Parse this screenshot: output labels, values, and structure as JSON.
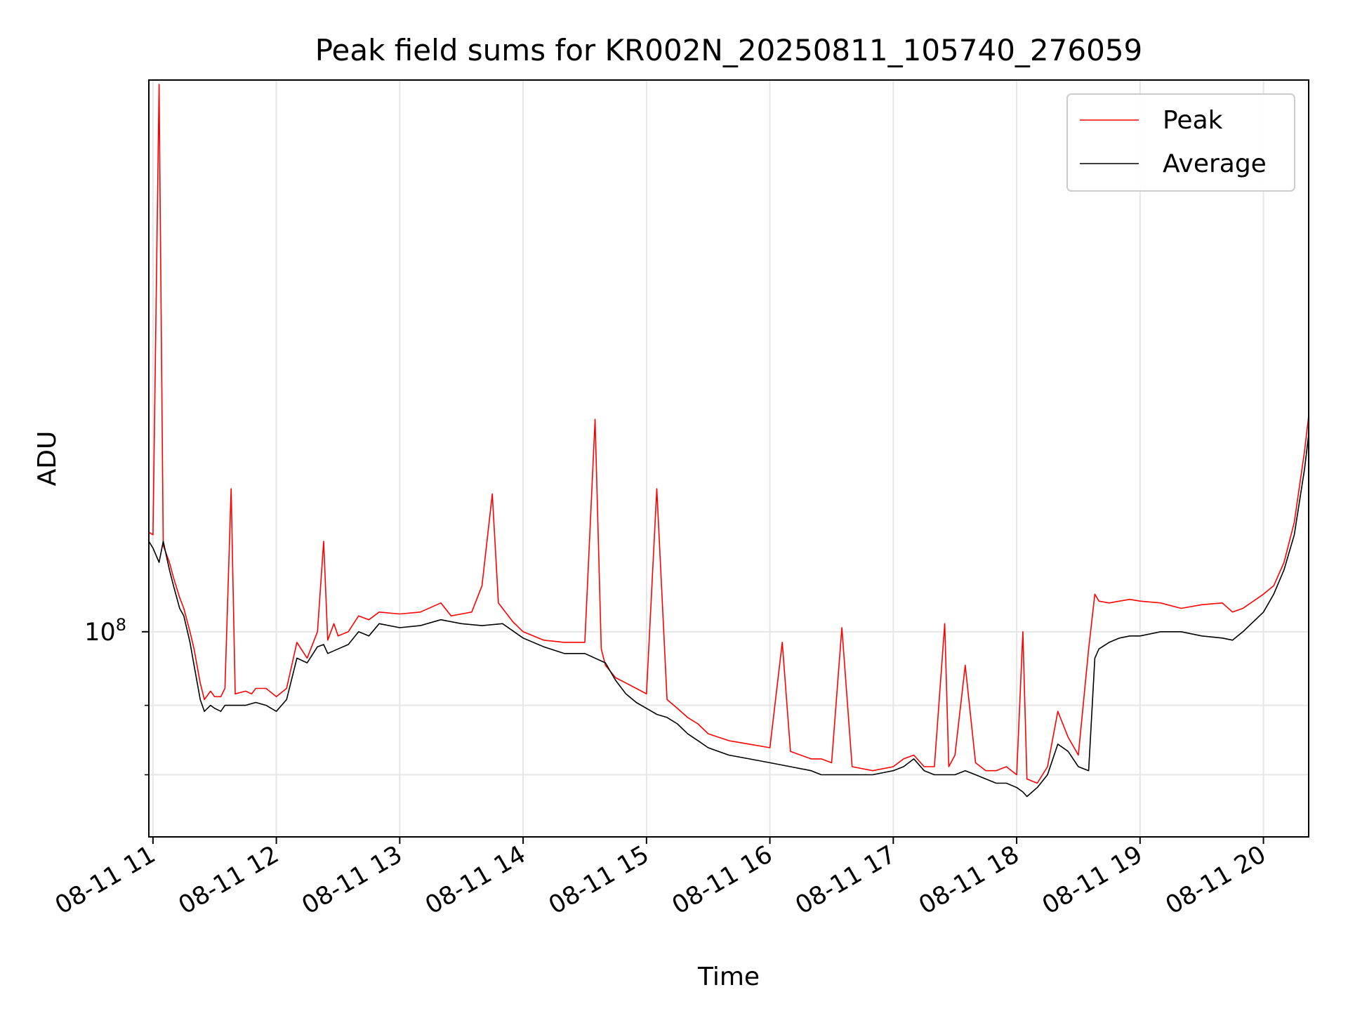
{
  "chart_data": {
    "type": "line",
    "title": "Peak field sums for KR002N_20250811_105740_276059",
    "xlabel": "Time",
    "ylabel": "ADU",
    "yscale": "log",
    "grid": true,
    "legend_position": "top-right",
    "xlim": [
      "2025-08-11 10:58",
      "2025-08-11 20:22"
    ],
    "ylim": [
      37000000,
      1450000000
    ],
    "x_ticks": [
      "08-11 11",
      "08-11 12",
      "08-11 13",
      "08-11 14",
      "08-11 15",
      "08-11 16",
      "08-11 17",
      "08-11 18",
      "08-11 19",
      "08-11 20"
    ],
    "y_tick_labels": [
      {
        "base": "10",
        "exp": "8"
      }
    ],
    "y_minor_ticks": [
      50000000,
      70000000
    ],
    "x_unit": "time of day (hours)",
    "series": [
      {
        "name": "Peak",
        "color": "#ff0000",
        "x": [
          "10:58",
          "11:00",
          "11:03",
          "11:05",
          "11:08",
          "11:10",
          "11:13",
          "11:15",
          "11:18",
          "11:20",
          "11:23",
          "11:25",
          "11:28",
          "11:30",
          "11:33",
          "11:35",
          "11:38",
          "11:40",
          "11:45",
          "11:48",
          "11:50",
          "11:55",
          "12:00",
          "12:05",
          "12:10",
          "12:15",
          "12:20",
          "12:23",
          "12:25",
          "12:28",
          "12:30",
          "12:35",
          "12:40",
          "12:45",
          "12:50",
          "13:00",
          "13:10",
          "13:20",
          "13:25",
          "13:30",
          "13:35",
          "13:40",
          "13:45",
          "13:48",
          "13:50",
          "13:55",
          "14:00",
          "14:10",
          "14:20",
          "14:30",
          "14:35",
          "14:38",
          "14:40",
          "14:45",
          "14:50",
          "14:55",
          "15:00",
          "15:05",
          "15:10",
          "15:15",
          "15:20",
          "15:25",
          "15:30",
          "15:40",
          "15:50",
          "16:00",
          "16:06",
          "16:10",
          "16:20",
          "16:25",
          "16:30",
          "16:35",
          "16:40",
          "16:50",
          "17:00",
          "17:05",
          "17:10",
          "17:15",
          "17:20",
          "17:25",
          "17:27",
          "17:30",
          "17:35",
          "17:40",
          "17:45",
          "17:50",
          "17:55",
          "18:00",
          "18:03",
          "18:05",
          "18:10",
          "18:15",
          "18:20",
          "18:25",
          "18:30",
          "18:35",
          "18:38",
          "18:40",
          "18:45",
          "18:50",
          "18:55",
          "19:00",
          "19:10",
          "19:20",
          "19:30",
          "19:40",
          "19:45",
          "19:50",
          "20:00",
          "20:05",
          "20:10",
          "20:15",
          "20:20",
          "20:22"
        ],
        "values": [
          162000000,
          160000000,
          1420000000,
          152000000,
          140000000,
          130000000,
          118000000,
          112000000,
          100000000,
          92000000,
          78000000,
          72000000,
          75000000,
          73000000,
          73000000,
          76000000,
          200000000,
          74000000,
          75000000,
          74000000,
          76000000,
          76000000,
          73000000,
          76000000,
          95000000,
          88000000,
          100000000,
          155000000,
          96000000,
          104000000,
          98000000,
          100000000,
          108000000,
          106000000,
          110000000,
          109000000,
          110000000,
          115000000,
          108000000,
          109000000,
          110000000,
          125000000,
          195000000,
          115000000,
          112000000,
          105000000,
          100000000,
          96000000,
          95000000,
          95000000,
          280000000,
          92000000,
          85000000,
          80000000,
          78000000,
          76000000,
          74000000,
          200000000,
          72000000,
          69000000,
          66000000,
          64000000,
          61000000,
          59000000,
          58000000,
          57000000,
          95000000,
          56000000,
          54000000,
          54000000,
          53000000,
          102000000,
          52000000,
          51000000,
          52000000,
          54000000,
          55000000,
          52000000,
          52000000,
          104000000,
          52000000,
          55000000,
          85000000,
          53000000,
          51000000,
          51000000,
          52000000,
          50000000,
          100000000,
          49000000,
          48000000,
          52000000,
          68000000,
          60000000,
          55000000,
          92000000,
          120000000,
          116000000,
          115000000,
          116000000,
          117000000,
          116000000,
          115000000,
          112000000,
          114000000,
          115000000,
          110000000,
          112000000,
          120000000,
          125000000,
          140000000,
          170000000,
          240000000,
          285000000
        ]
      },
      {
        "name": "Average",
        "color": "#000000",
        "x": [
          "10:58",
          "11:00",
          "11:03",
          "11:05",
          "11:08",
          "11:10",
          "11:13",
          "11:15",
          "11:18",
          "11:20",
          "11:23",
          "11:25",
          "11:28",
          "11:30",
          "11:33",
          "11:35",
          "11:40",
          "11:45",
          "11:50",
          "11:55",
          "12:00",
          "12:05",
          "12:10",
          "12:15",
          "12:20",
          "12:23",
          "12:25",
          "12:30",
          "12:35",
          "12:40",
          "12:45",
          "12:50",
          "13:00",
          "13:10",
          "13:20",
          "13:30",
          "13:40",
          "13:50",
          "14:00",
          "14:10",
          "14:20",
          "14:30",
          "14:40",
          "14:45",
          "14:50",
          "14:55",
          "15:00",
          "15:05",
          "15:10",
          "15:15",
          "15:20",
          "15:25",
          "15:30",
          "15:40",
          "15:50",
          "16:00",
          "16:10",
          "16:20",
          "16:25",
          "16:30",
          "16:40",
          "16:50",
          "17:00",
          "17:05",
          "17:10",
          "17:15",
          "17:20",
          "17:25",
          "17:30",
          "17:35",
          "17:40",
          "17:45",
          "17:50",
          "17:55",
          "18:00",
          "18:03",
          "18:05",
          "18:10",
          "18:15",
          "18:20",
          "18:25",
          "18:30",
          "18:35",
          "18:38",
          "18:40",
          "18:45",
          "18:50",
          "18:55",
          "19:00",
          "19:10",
          "19:20",
          "19:30",
          "19:40",
          "19:45",
          "19:50",
          "20:00",
          "20:05",
          "20:10",
          "20:15",
          "20:20",
          "20:22"
        ],
        "values": [
          155000000,
          150000000,
          140000000,
          155000000,
          135000000,
          125000000,
          112000000,
          108000000,
          95000000,
          85000000,
          72000000,
          68000000,
          70000000,
          69000000,
          68000000,
          70000000,
          70000000,
          70000000,
          71000000,
          70000000,
          68000000,
          72000000,
          88000000,
          86000000,
          93000000,
          94000000,
          90000000,
          92000000,
          94000000,
          100000000,
          98000000,
          104000000,
          102000000,
          103000000,
          106000000,
          104000000,
          103000000,
          104000000,
          97000000,
          93000000,
          90000000,
          90000000,
          86000000,
          79000000,
          74000000,
          71000000,
          69000000,
          67000000,
          66000000,
          64000000,
          61000000,
          59000000,
          57000000,
          55000000,
          54000000,
          53000000,
          52000000,
          51000000,
          50000000,
          50000000,
          50000000,
          50000000,
          51000000,
          52000000,
          54000000,
          51000000,
          50000000,
          50000000,
          50000000,
          51000000,
          50000000,
          49000000,
          48000000,
          48000000,
          47000000,
          46000000,
          45000000,
          47000000,
          50000000,
          58000000,
          56000000,
          52000000,
          51000000,
          88000000,
          92000000,
          95000000,
          97000000,
          98000000,
          98000000,
          100000000,
          100000000,
          98000000,
          97000000,
          96000000,
          100000000,
          110000000,
          120000000,
          135000000,
          160000000,
          220000000,
          260000000
        ]
      }
    ]
  }
}
